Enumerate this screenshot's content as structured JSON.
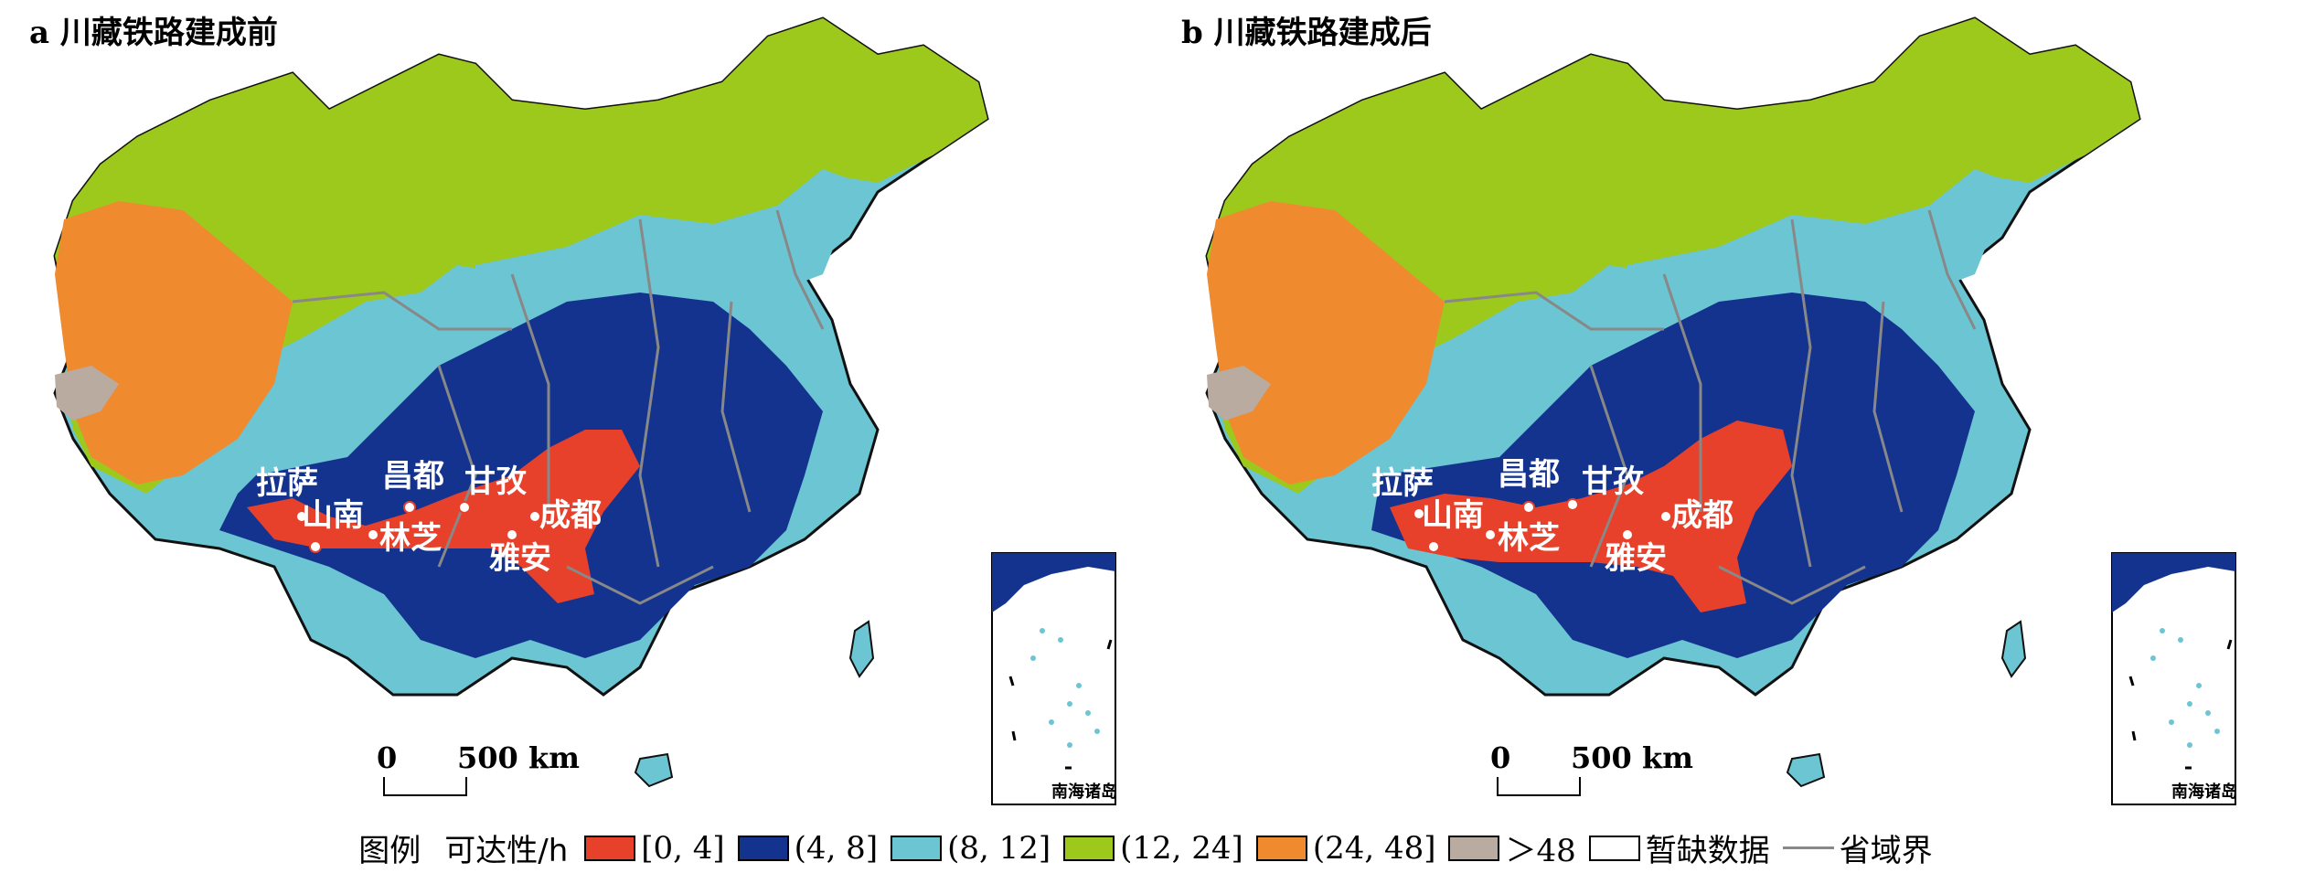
{
  "panels": [
    {
      "id": "a",
      "title": "a 川藏铁路建成前"
    },
    {
      "id": "b",
      "title": "b 川藏铁路建成后"
    }
  ],
  "cities": [
    "拉萨",
    "山南",
    "林芝",
    "昌都",
    "甘孜",
    "雅安",
    "成都"
  ],
  "scale": {
    "zero": "0",
    "distance": "500 km"
  },
  "inset": {
    "label": "南海诸岛"
  },
  "legend": {
    "title": "图例",
    "unit": "可达性/h",
    "classes": [
      {
        "label": "[0, 4]",
        "color": "#e8412b"
      },
      {
        "label": "(4, 8]",
        "color": "#13338f"
      },
      {
        "label": "(8, 12]",
        "color": "#6cc5d3"
      },
      {
        "label": "(12, 24]",
        "color": "#9dc81c"
      },
      {
        "label": "(24, 48]",
        "color": "#ef8a2f"
      },
      {
        "label": "＞48",
        "color": "#b9aba0"
      },
      {
        "label": "暂缺数据",
        "color": "#ffffff"
      }
    ],
    "boundary": {
      "label": "省域界",
      "color": "#888888"
    }
  }
}
